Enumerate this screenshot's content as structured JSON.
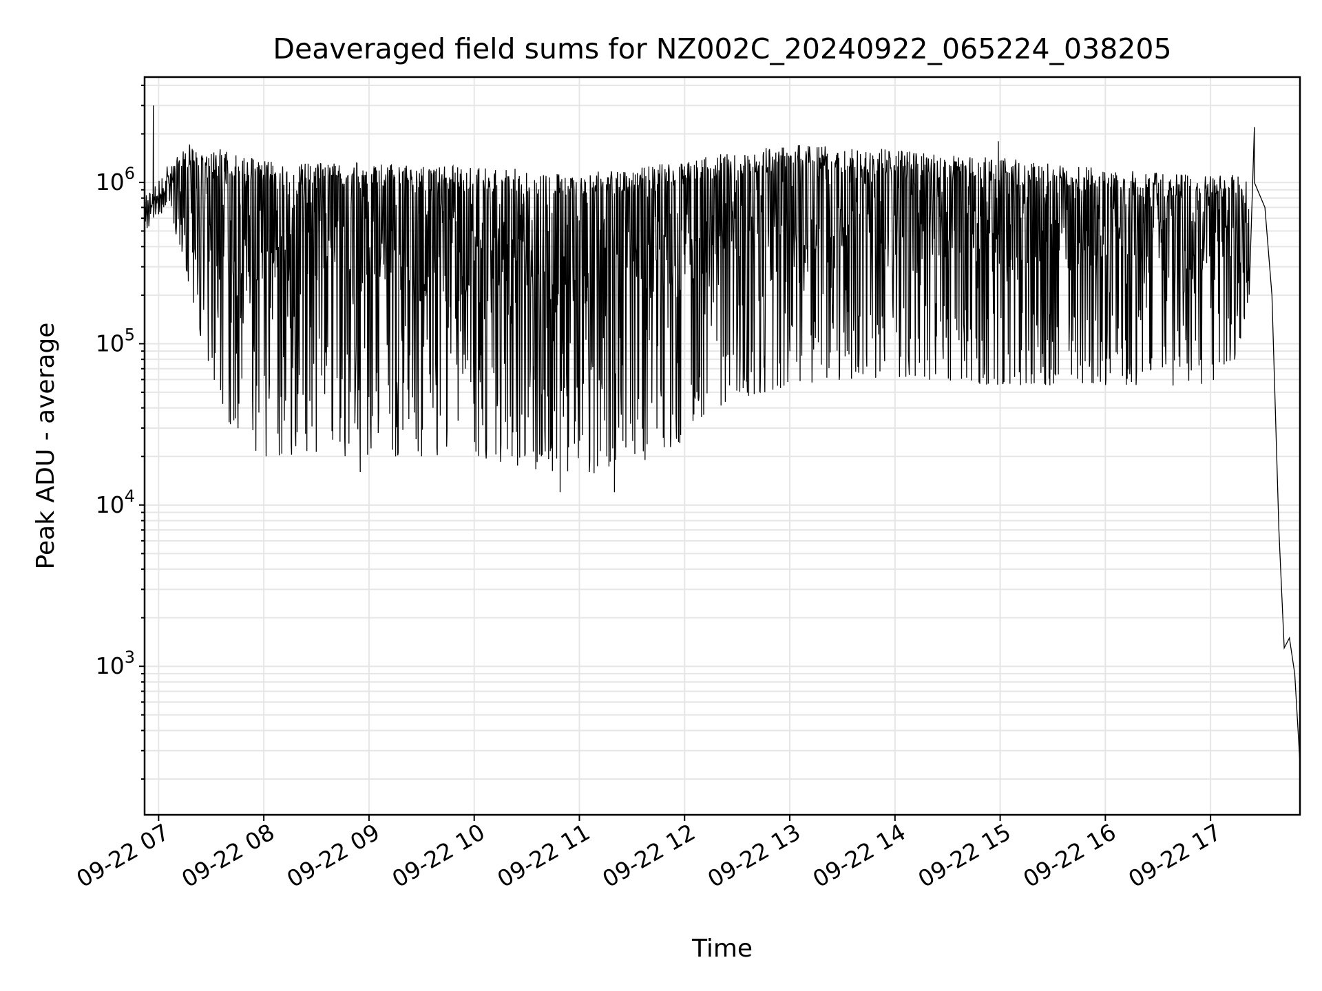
{
  "chart_data": {
    "type": "line",
    "title": "Deaveraged field sums for NZ002C_20240922_065224_038205",
    "xlabel": "Time",
    "ylabel": "Peak ADU - average",
    "yscale": "log",
    "ylim": [
      120,
      4500000
    ],
    "xlim": [
      "2024-09-22 06:52",
      "2024-09-22 17:51"
    ],
    "grid": true,
    "x_tick_labels": [
      "09-22 07",
      "09-22 08",
      "09-22 09",
      "09-22 10",
      "09-22 11",
      "09-22 12",
      "09-22 13",
      "09-22 14",
      "09-22 15",
      "09-22 16",
      "09-22 17"
    ],
    "x_ticks": [
      "2024-09-22 07:00",
      "2024-09-22 08:00",
      "2024-09-22 09:00",
      "2024-09-22 10:00",
      "2024-09-22 11:00",
      "2024-09-22 12:00",
      "2024-09-22 13:00",
      "2024-09-22 14:00",
      "2024-09-22 15:00",
      "2024-09-22 16:00",
      "2024-09-22 17:00"
    ],
    "y_ticks": [
      {
        "value": 1000,
        "base": "10",
        "exp": "3"
      },
      {
        "value": 10000,
        "base": "10",
        "exp": "4"
      },
      {
        "value": 100000,
        "base": "10",
        "exp": "5"
      },
      {
        "value": 1000000,
        "base": "10",
        "exp": "6"
      }
    ],
    "series": [
      {
        "color": "#000000",
        "envelope": {
          "time": [
            "2024-09-22 06:52",
            "2024-09-22 07:05",
            "2024-09-22 07:15",
            "2024-09-22 07:25",
            "2024-09-22 07:35",
            "2024-09-22 07:45",
            "2024-09-22 08:00",
            "2024-09-22 08:30",
            "2024-09-22 09:00",
            "2024-09-22 09:30",
            "2024-09-22 10:00",
            "2024-09-22 10:30",
            "2024-09-22 11:00",
            "2024-09-22 11:30",
            "2024-09-22 12:00",
            "2024-09-22 12:30",
            "2024-09-22 13:00",
            "2024-09-22 13:30",
            "2024-09-22 14:00",
            "2024-09-22 14:30",
            "2024-09-22 15:00",
            "2024-09-22 15:30",
            "2024-09-22 16:00",
            "2024-09-22 16:30",
            "2024-09-22 17:00",
            "2024-09-22 17:15",
            "2024-09-22 17:22"
          ],
          "upper": [
            700000,
            1100000,
            1500000,
            1500000,
            1400000,
            1300000,
            1200000,
            1150000,
            1150000,
            1100000,
            1100000,
            1050000,
            1000000,
            1050000,
            1200000,
            1350000,
            1500000,
            1450000,
            1400000,
            1300000,
            1250000,
            1150000,
            1050000,
            1000000,
            950000,
            1000000,
            900000
          ],
          "lower": [
            500000,
            700000,
            300000,
            100000,
            40000,
            25000,
            20000,
            20000,
            20000,
            20000,
            20000,
            17000,
            15000,
            17000,
            25000,
            45000,
            55000,
            60000,
            62000,
            58000,
            55000,
            55000,
            55000,
            55000,
            55000,
            80000,
            200000
          ]
        },
        "spikes": [
          {
            "time": "2024-09-22 06:57",
            "value": 3000000
          },
          {
            "time": "2024-09-22 10:49",
            "value": 12000
          },
          {
            "time": "2024-09-22 11:20",
            "value": 12000
          },
          {
            "time": "2024-09-22 08:55",
            "value": 16000
          },
          {
            "time": "2024-09-22 14:59",
            "value": 1800000
          },
          {
            "time": "2024-09-22 17:25",
            "value": 2200000
          }
        ],
        "falloff": {
          "time": [
            "2024-09-22 17:25",
            "2024-09-22 17:31",
            "2024-09-22 17:35",
            "2024-09-22 17:39",
            "2024-09-22 17:42",
            "2024-09-22 17:45",
            "2024-09-22 17:48",
            "2024-09-22 17:51"
          ],
          "value": [
            1000000,
            700000,
            200000,
            7000,
            1300,
            1500,
            900,
            250
          ]
        }
      }
    ]
  }
}
